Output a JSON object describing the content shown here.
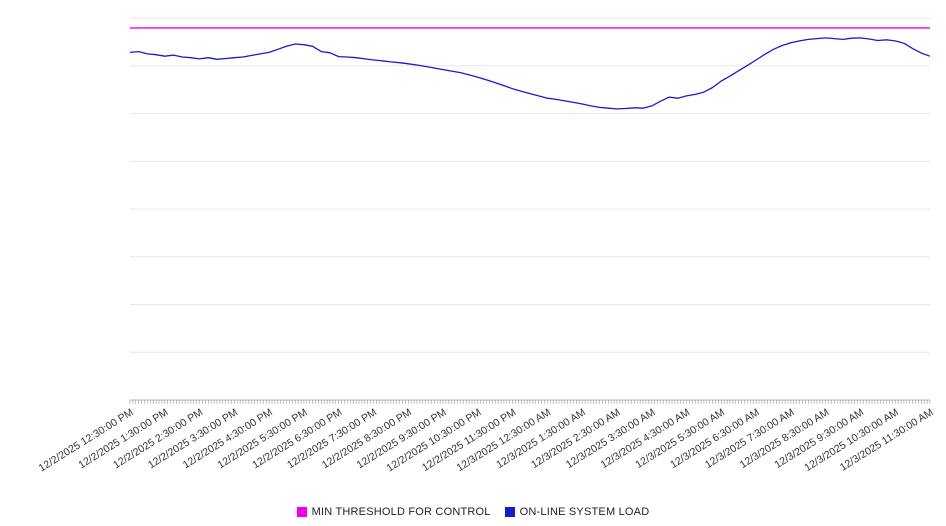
{
  "chart_data": {
    "type": "line",
    "x_labels": [
      "12/2/2025 12:30:00 PM",
      "12/2/2025 1:30:00 PM",
      "12/2/2025 2:30:00 PM",
      "12/2/2025 3:30:00 PM",
      "12/2/2025 4:30:00 PM",
      "12/2/2025 5:30:00 PM",
      "12/2/2025 6:30:00 PM",
      "12/2/2025 7:30:00 PM",
      "12/2/2025 8:30:00 PM",
      "12/2/2025 9:30:00 PM",
      "12/2/2025 10:30:00 PM",
      "12/2/2025 11:30:00 PM",
      "12/3/2025 12:30:00 AM",
      "12/3/2025 1:30:00 AM",
      "12/3/2025 2:30:00 AM",
      "12/3/2025 3:30:00 AM",
      "12/3/2025 4:30:00 AM",
      "12/3/2025 5:30:00 AM",
      "12/3/2025 6:30:00 AM",
      "12/3/2025 7:30:00 AM",
      "12/3/2025 8:30:00 AM",
      "12/3/2025 9:30:00 AM",
      "12/3/2025 10:30:00 AM",
      "12/3/2025 11:30:00 AM"
    ],
    "points_per_hour": 4,
    "ylim": [
      0,
      100
    ],
    "grid_step": 12.5,
    "grid": true,
    "legend_position": "bottom",
    "series": [
      {
        "name": "MIN THRESHOLD FOR CONTROL",
        "color": "#ee00ee",
        "constant": 97.4
      },
      {
        "name": "ON-LINE SYSTEM LOAD",
        "color": "#1a1acd",
        "values": [
          91.0,
          91.2,
          90.6,
          90.4,
          90.0,
          90.3,
          89.8,
          89.6,
          89.3,
          89.6,
          89.2,
          89.4,
          89.6,
          89.8,
          90.2,
          90.6,
          91.0,
          91.8,
          92.6,
          93.2,
          93.0,
          92.6,
          91.2,
          90.9,
          89.9,
          89.8,
          89.6,
          89.3,
          89.0,
          88.8,
          88.5,
          88.3,
          88.0,
          87.7,
          87.3,
          86.9,
          86.5,
          86.1,
          85.7,
          85.1,
          84.5,
          83.8,
          83.1,
          82.3,
          81.5,
          80.8,
          80.2,
          79.6,
          79.0,
          78.7,
          78.3,
          77.9,
          77.5,
          77.0,
          76.6,
          76.4,
          76.2,
          76.3,
          76.5,
          76.4,
          77.0,
          78.2,
          79.3,
          79.0,
          79.6,
          80.0,
          80.6,
          81.8,
          83.5,
          84.8,
          86.2,
          87.6,
          89.0,
          90.5,
          91.8,
          92.8,
          93.5,
          94.0,
          94.4,
          94.6,
          94.8,
          94.6,
          94.4,
          94.7,
          94.8,
          94.5,
          94.1,
          94.3,
          94.0,
          93.4,
          92.0,
          90.8,
          90.0
        ]
      }
    ]
  },
  "legend": {
    "items": [
      {
        "label": "MIN THRESHOLD FOR CONTROL",
        "color": "#ee00ee"
      },
      {
        "label": "ON-LINE SYSTEM LOAD",
        "color": "#1a1acd"
      }
    ]
  }
}
